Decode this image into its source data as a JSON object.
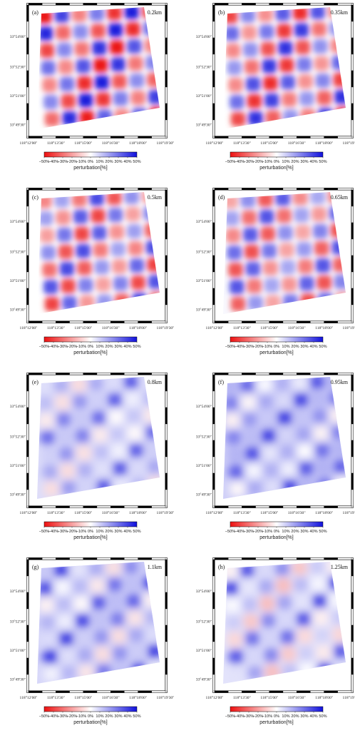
{
  "figure": {
    "lat_ticks": [
      "33°54'00\"",
      "33°52'30\"",
      "33°51'00\"",
      "33°49'30\""
    ],
    "lon_ticks": [
      "118°12'00\"",
      "118°13'30\"",
      "118°15'00\"",
      "118°16'30\"",
      "118°18'00\"",
      "118°19'30\""
    ],
    "colorbar": {
      "ticks": [
        "−50%",
        "−40%",
        "−30%",
        "−20%",
        "−10%",
        "0%",
        "10%",
        "20%",
        "30%",
        "40%",
        "50%"
      ],
      "title": "perturbation[%]",
      "colors": {
        "negative": "#ee1111",
        "zero": "#ffffff",
        "positive": "#1111dd"
      }
    },
    "panels": [
      {
        "label": "(a)",
        "depth": "0.2km",
        "amplitude": 1.0,
        "mean": 0.0
      },
      {
        "label": "(b)",
        "depth": "0.35km",
        "amplitude": 0.9,
        "mean": 0.0
      },
      {
        "label": "(c)",
        "depth": "0.5km",
        "amplitude": 0.8,
        "mean": 0.0
      },
      {
        "label": "(d)",
        "depth": "0.65km",
        "amplitude": 0.75,
        "mean": 0.05
      },
      {
        "label": "(e)",
        "depth": "0.8km",
        "amplitude": 0.45,
        "mean": 0.25
      },
      {
        "label": "(f)",
        "depth": "0.95km",
        "amplitude": 0.45,
        "mean": 0.35
      },
      {
        "label": "(g)",
        "depth": "1.1km",
        "amplitude": 0.5,
        "mean": 0.3
      },
      {
        "label": "(h)",
        "depth": "1.25km",
        "amplitude": 0.55,
        "mean": 0.2
      }
    ]
  }
}
